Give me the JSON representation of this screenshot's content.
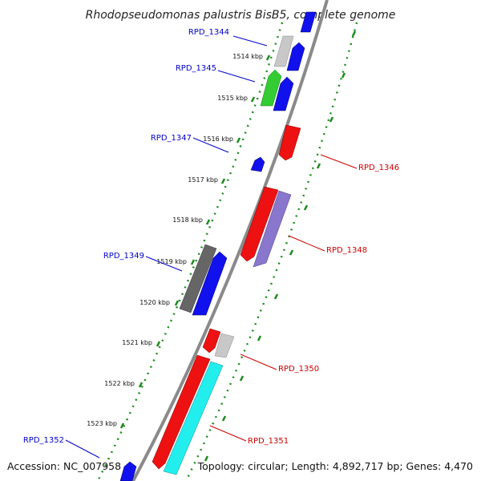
{
  "title": "Rhodopseudomonas palustris BisB5, complete genome",
  "footer": {
    "accession": "Accession: NC_007958",
    "topology": "Topology: circular; Length: 4,892,717 bp; Genes: 4,470"
  },
  "kbp_ticks": [
    "1514 kbp",
    "1515 kbp",
    "1516 kbp",
    "1517 kbp",
    "1518 kbp",
    "1519 kbp",
    "1520 kbp",
    "1521 kbp",
    "1522 kbp",
    "1523 kbp"
  ],
  "colors": {
    "forward_label": "#0000cc",
    "reverse_label": "#cc0000",
    "backbone": "#8a8a8a",
    "tick_dot": "#1a8a1a"
  },
  "genes": [
    {
      "label": "RPD_1344",
      "strand": "forward",
      "color": "#c8c8c8"
    },
    {
      "label": "RPD_1345",
      "strand": "forward",
      "color": "#33cc33"
    },
    {
      "label": "RPD_1346",
      "strand": "reverse",
      "color": "#ee1111"
    },
    {
      "label": "RPD_1347",
      "strand": "forward",
      "color": "#1111ee"
    },
    {
      "label": "RPD_1348",
      "strand": "reverse",
      "color": "#8877cc"
    },
    {
      "label": "RPD_1349",
      "strand": "forward",
      "color": "#666666"
    },
    {
      "label": "RPD_1350",
      "strand": "reverse",
      "color": "#c8c8c8"
    },
    {
      "label": "RPD_1351",
      "strand": "reverse",
      "color": "#22eeee"
    },
    {
      "label": "RPD_1352",
      "strand": "forward",
      "color": "#1111ee"
    }
  ]
}
